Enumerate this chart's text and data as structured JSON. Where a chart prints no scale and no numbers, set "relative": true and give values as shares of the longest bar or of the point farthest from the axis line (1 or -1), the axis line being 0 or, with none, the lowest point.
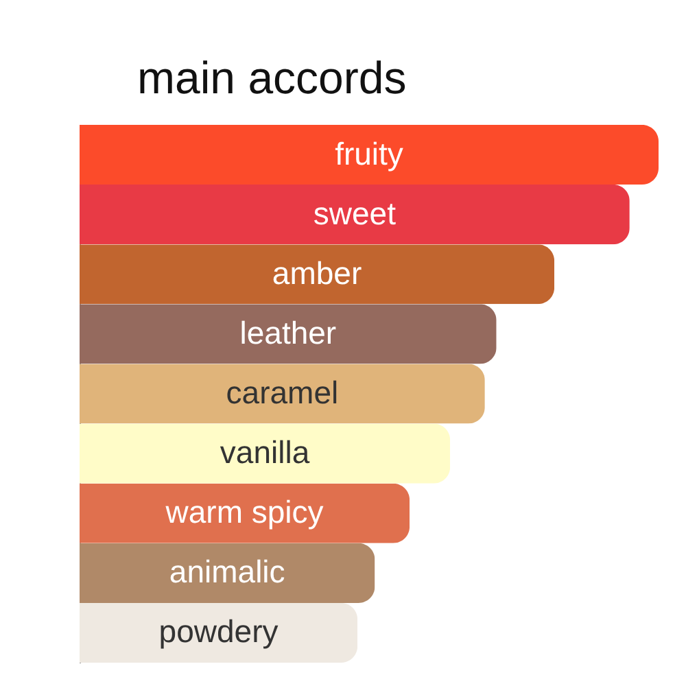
{
  "chart_data": {
    "type": "bar",
    "title": "main accords",
    "orientation": "horizontal",
    "relative": true,
    "categories": [
      "fruity",
      "sweet",
      "amber",
      "leather",
      "caramel",
      "vanilla",
      "warm spicy",
      "animalic",
      "powdery"
    ],
    "values": [
      1,
      0.95,
      0.82,
      0.72,
      0.7,
      0.64,
      0.57,
      0.51,
      0.48
    ],
    "colors": [
      "#fc4b2a",
      "#e83a45",
      "#c1652f",
      "#956a5e",
      "#e0b47a",
      "#fffcc8",
      "#e0704e",
      "#b08968",
      "#efe9e1"
    ]
  }
}
